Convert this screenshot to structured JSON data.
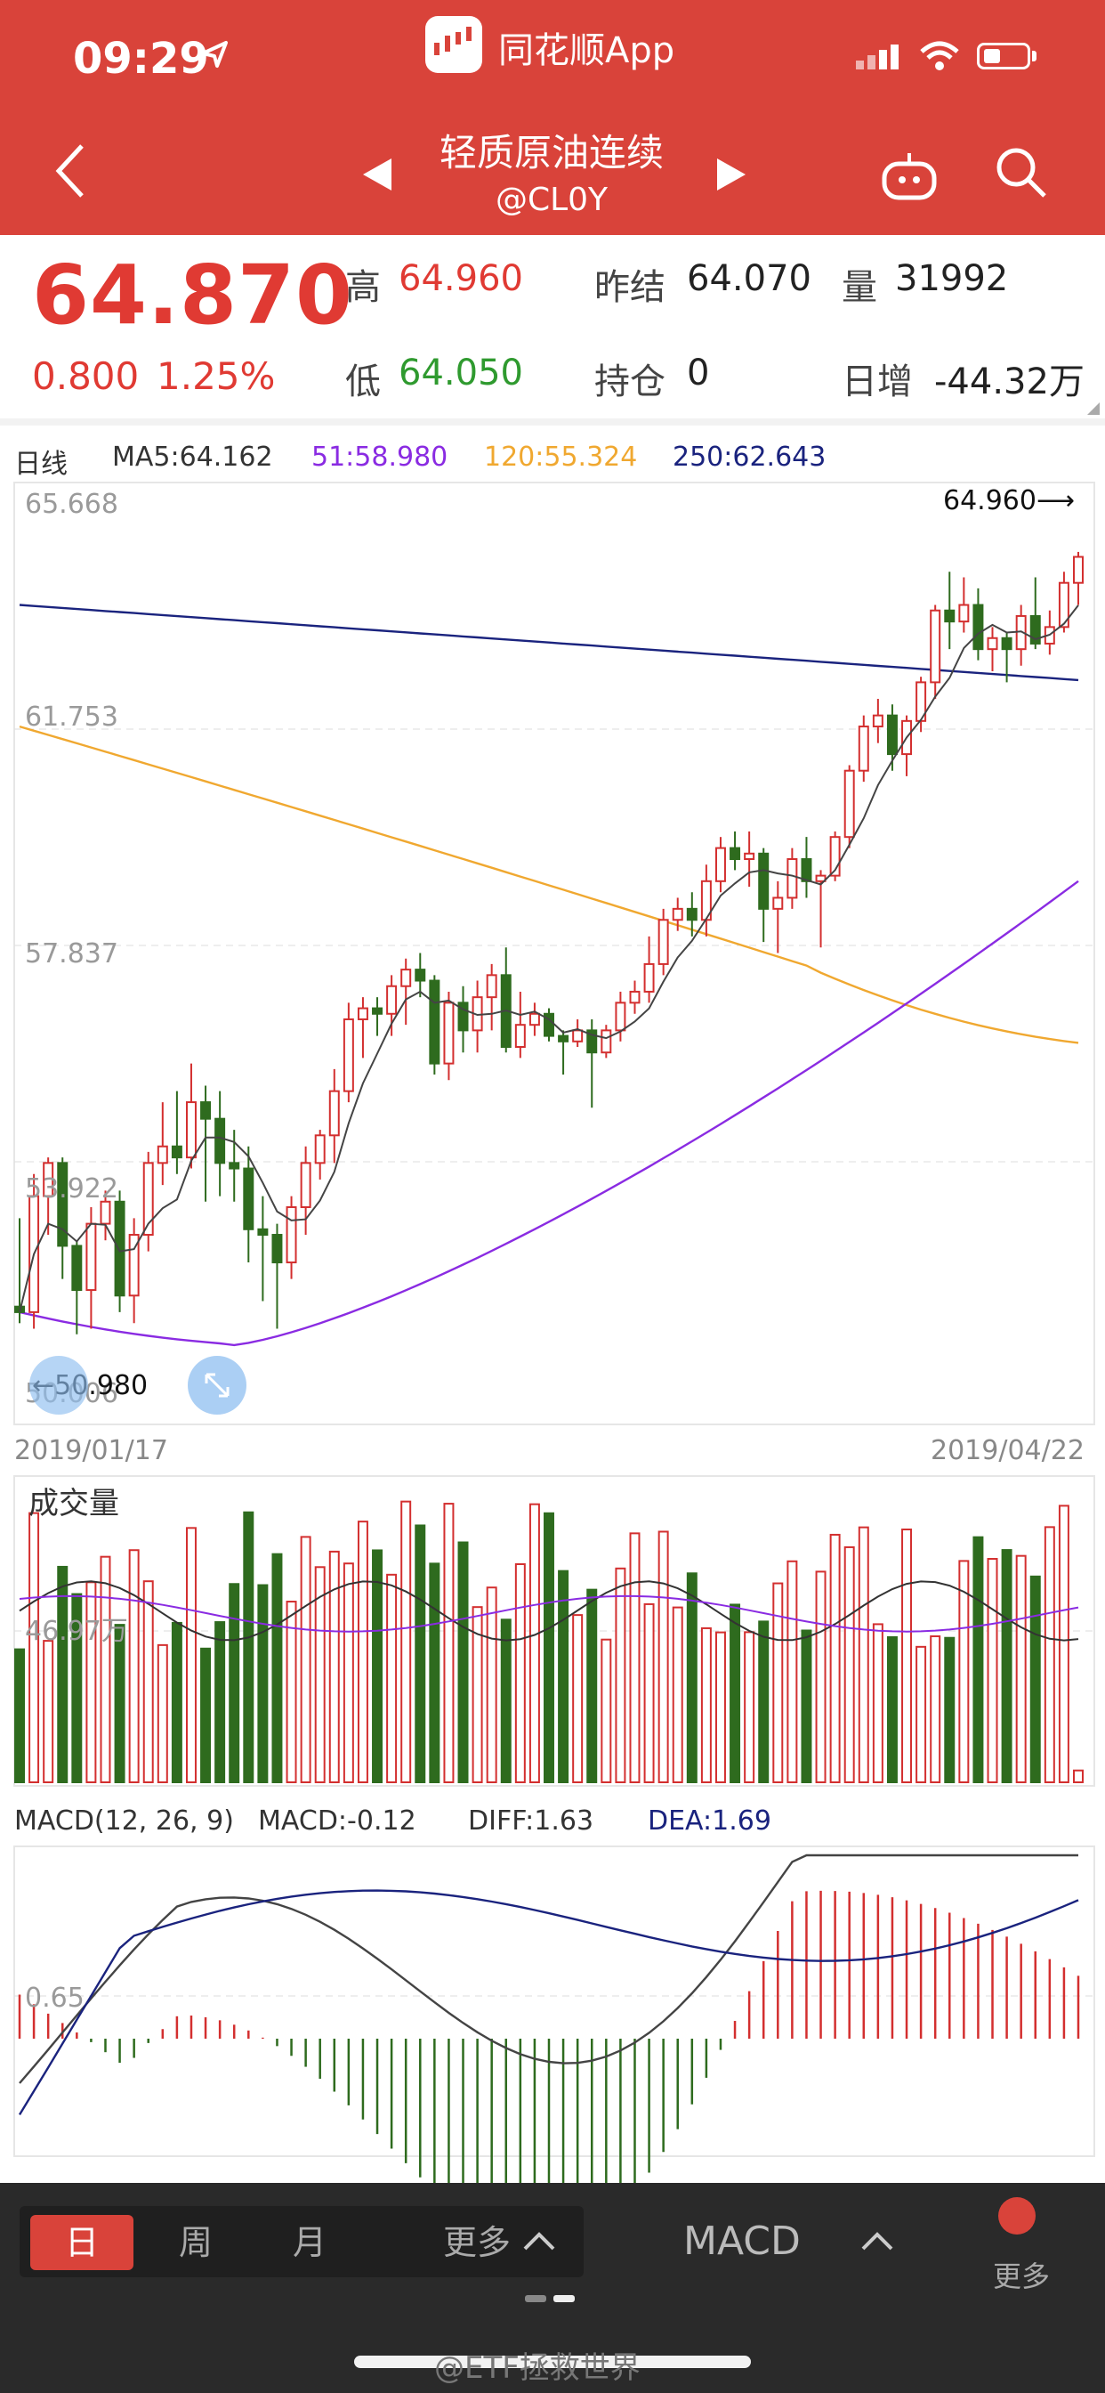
{
  "status_bar": {
    "time": "09:29",
    "app_name": "同花顺App"
  },
  "header": {
    "title": "轻质原油连续",
    "subtitle": "@CL0Y"
  },
  "quote": {
    "last_price": "64.870",
    "change": "0.800",
    "change_pct": "1.25%",
    "high_label": "高",
    "high": "64.960",
    "low_label": "低",
    "low": "64.050",
    "prev_settle_label": "昨结",
    "prev_settle": "64.070",
    "volume_label": "量",
    "volume": "31992",
    "open_interest_label": "持仓",
    "open_interest": "0",
    "daily_increase_label": "日增",
    "daily_increase": "-44.32万"
  },
  "ma_legend": {
    "period": "日线",
    "ma5": "MA5:64.162",
    "ma51": "51:58.980",
    "ma120": "120:55.324",
    "ma250": "250:62.643"
  },
  "colors": {
    "brand_red": "#d9433a",
    "up": "#d32f2f",
    "down": "#2e6b1e",
    "ma5": "#444444",
    "ma51": "#8a2be2",
    "ma120": "#f0a830",
    "ma250": "#1a237e"
  },
  "chart_data": [
    {
      "type": "candlestick",
      "y_axis_labels": [
        "65.668",
        "61.753",
        "57.837",
        "53.922",
        "50.006"
      ],
      "ylim": [
        50.006,
        65.668
      ],
      "x_start": "2019/01/17",
      "x_end": "2019/04/22",
      "max_label": "64.960⟶",
      "min_label": "←50.980",
      "ohlc": [
        [
          51.3,
          52.9,
          51.0,
          51.2
        ],
        [
          51.2,
          53.7,
          50.9,
          53.3
        ],
        [
          53.3,
          54.0,
          52.6,
          53.9
        ],
        [
          53.9,
          54.0,
          51.8,
          52.4
        ],
        [
          52.4,
          52.5,
          50.8,
          51.6
        ],
        [
          51.6,
          53.1,
          50.9,
          52.8
        ],
        [
          52.8,
          53.4,
          52.5,
          53.2
        ],
        [
          53.2,
          53.4,
          51.2,
          51.5
        ],
        [
          51.5,
          52.9,
          51.0,
          52.6
        ],
        [
          52.6,
          54.1,
          52.3,
          53.9
        ],
        [
          53.9,
          55.0,
          53.5,
          54.2
        ],
        [
          54.2,
          55.2,
          53.7,
          54.0
        ],
        [
          54.0,
          55.7,
          53.8,
          55.0
        ],
        [
          55.0,
          55.3,
          53.2,
          54.7
        ],
        [
          54.7,
          55.2,
          53.3,
          53.9
        ],
        [
          53.9,
          54.5,
          53.2,
          53.8
        ],
        [
          53.8,
          54.2,
          52.1,
          52.7
        ],
        [
          52.7,
          53.3,
          51.4,
          52.6
        ],
        [
          52.6,
          52.8,
          50.9,
          52.1
        ],
        [
          52.1,
          53.3,
          51.8,
          53.1
        ],
        [
          53.1,
          54.2,
          52.6,
          53.9
        ],
        [
          53.9,
          54.5,
          53.6,
          54.4
        ],
        [
          54.4,
          55.6,
          53.9,
          55.2
        ],
        [
          55.2,
          56.8,
          55.0,
          56.5
        ],
        [
          56.5,
          56.9,
          55.8,
          56.7
        ],
        [
          56.7,
          56.9,
          56.2,
          56.6
        ],
        [
          56.6,
          57.3,
          56.2,
          57.1
        ],
        [
          57.1,
          57.6,
          56.4,
          57.4
        ],
        [
          57.4,
          57.7,
          56.9,
          57.2
        ],
        [
          57.2,
          57.3,
          55.5,
          55.7
        ],
        [
          55.7,
          57.0,
          55.4,
          56.8
        ],
        [
          56.8,
          57.1,
          55.9,
          56.3
        ],
        [
          56.3,
          57.2,
          55.9,
          56.9
        ],
        [
          56.9,
          57.5,
          56.3,
          57.3
        ],
        [
          57.3,
          57.8,
          55.9,
          56.0
        ],
        [
          56.0,
          57.0,
          55.8,
          56.4
        ],
        [
          56.4,
          56.8,
          56.2,
          56.6
        ],
        [
          56.6,
          56.7,
          56.1,
          56.2
        ],
        [
          56.2,
          56.3,
          55.5,
          56.1
        ],
        [
          56.1,
          56.5,
          56.0,
          56.3
        ],
        [
          56.3,
          56.5,
          54.9,
          55.9
        ],
        [
          55.9,
          56.4,
          55.8,
          56.3
        ],
        [
          56.3,
          57.0,
          56.1,
          56.8
        ],
        [
          56.8,
          57.2,
          56.6,
          57.0
        ],
        [
          57.0,
          58.0,
          56.8,
          57.5
        ],
        [
          57.5,
          58.5,
          57.3,
          58.3
        ],
        [
          58.3,
          58.7,
          58.1,
          58.5
        ],
        [
          58.5,
          58.8,
          58.0,
          58.3
        ],
        [
          58.3,
          59.3,
          58.0,
          59.0
        ],
        [
          59.0,
          59.8,
          58.8,
          59.6
        ],
        [
          59.6,
          59.9,
          59.2,
          59.4
        ],
        [
          59.4,
          59.9,
          58.9,
          59.5
        ],
        [
          59.5,
          59.6,
          57.9,
          58.5
        ],
        [
          58.5,
          59.0,
          57.7,
          58.7
        ],
        [
          58.7,
          59.6,
          58.5,
          59.4
        ],
        [
          59.4,
          59.8,
          58.7,
          59.0
        ],
        [
          59.0,
          59.2,
          57.8,
          59.1
        ],
        [
          59.1,
          59.9,
          59.0,
          59.8
        ],
        [
          59.8,
          61.1,
          59.6,
          61.0
        ],
        [
          61.0,
          62.0,
          60.8,
          61.8
        ],
        [
          61.8,
          62.3,
          61.5,
          62.0
        ],
        [
          62.0,
          62.2,
          61.0,
          61.3
        ],
        [
          61.3,
          62.0,
          60.9,
          61.9
        ],
        [
          61.9,
          62.7,
          61.7,
          62.6
        ],
        [
          62.6,
          64.0,
          62.3,
          63.9
        ],
        [
          63.9,
          64.6,
          63.2,
          63.7
        ],
        [
          63.7,
          64.5,
          63.5,
          64.0
        ],
        [
          64.0,
          64.3,
          63.0,
          63.2
        ],
        [
          63.2,
          63.6,
          62.8,
          63.4
        ],
        [
          63.4,
          63.5,
          62.6,
          63.2
        ],
        [
          63.2,
          64.0,
          62.9,
          63.8
        ],
        [
          63.8,
          64.5,
          63.2,
          63.3
        ],
        [
          63.3,
          63.9,
          63.1,
          63.6
        ],
        [
          63.6,
          64.6,
          63.5,
          64.4
        ],
        [
          64.4,
          64.96,
          64.0,
          64.87
        ]
      ]
    },
    {
      "type": "bar",
      "title": "成交量",
      "y_tick_label": "46.97万"
    },
    {
      "type": "bar",
      "title": "MACD(12, 26, 9)",
      "macd": "MACD:-0.12",
      "diff": "DIFF:1.63",
      "dea": "DEA:1.69",
      "y_tick_label": "0.65"
    }
  ],
  "bottom_bar": {
    "periods": [
      "日",
      "周",
      "月"
    ],
    "more_label": "更多",
    "indicator": "MACD",
    "right_more": "更多"
  },
  "watermark": "@ETF拯救世界"
}
